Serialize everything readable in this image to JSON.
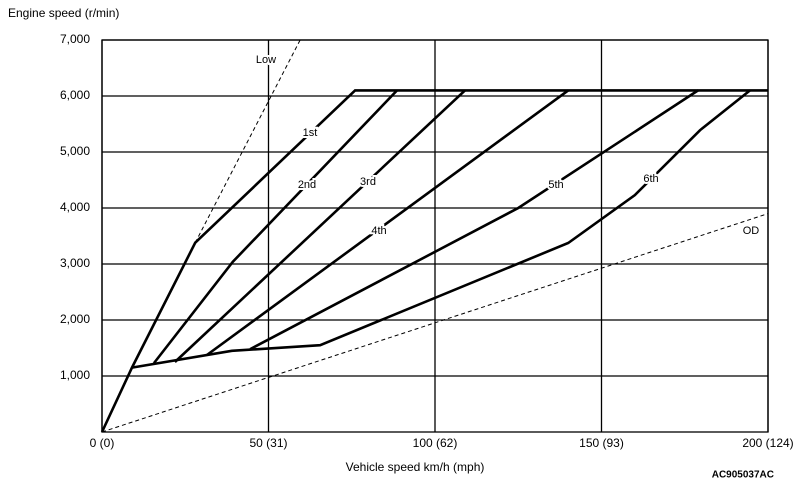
{
  "chart_data": {
    "type": "line",
    "y_axis_title": "Engine speed (r/min)",
    "x_axis_title": "Vehicle speed  km/h (mph)",
    "annotation": "AC905037AC",
    "xlim": [
      0,
      200
    ],
    "ylim": [
      0,
      7000
    ],
    "xticks": [
      {
        "value": 0,
        "label": "0 (0)"
      },
      {
        "value": 50,
        "label": "50 (31)"
      },
      {
        "value": 100,
        "label": "100 (62)"
      },
      {
        "value": 150,
        "label": "150 (93)"
      },
      {
        "value": 200,
        "label": "200 (124)"
      }
    ],
    "yticks": [
      {
        "value": 1000,
        "label": "1,000"
      },
      {
        "value": 2000,
        "label": "2,000"
      },
      {
        "value": 3000,
        "label": "3,000"
      },
      {
        "value": 4000,
        "label": "4,000"
      },
      {
        "value": 5000,
        "label": "5,000"
      },
      {
        "value": 6000,
        "label": "6,000"
      },
      {
        "value": 7000,
        "label": "7,000"
      }
    ],
    "grid": true,
    "series": [
      {
        "name": "Low",
        "color": "#000000",
        "dashed": true,
        "x": [
          28,
          59.5
        ],
        "values": [
          3380,
          7000
        ]
      },
      {
        "name": "1st",
        "color": "#000000",
        "dashed": false,
        "x": [
          0,
          9,
          28,
          76,
          200
        ],
        "values": [
          0,
          1150,
          3380,
          6100,
          6100
        ]
      },
      {
        "name": "2nd",
        "color": "#000000",
        "dashed": false,
        "x": [
          15.6,
          39.3,
          88.6
        ],
        "values": [
          1230,
          3040,
          6100
        ]
      },
      {
        "name": "3rd",
        "color": "#000000",
        "dashed": false,
        "x": [
          21.9,
          109
        ],
        "values": [
          1250,
          6100
        ]
      },
      {
        "name": "4th",
        "color": "#000000",
        "dashed": false,
        "x": [
          31.5,
          140
        ],
        "values": [
          1375,
          6100
        ]
      },
      {
        "name": "5th",
        "color": "#000000",
        "dashed": false,
        "x": [
          44.5,
          125,
          179
        ],
        "values": [
          1480,
          4000,
          6100
        ]
      },
      {
        "name": "6th",
        "color": "#000000",
        "dashed": false,
        "x": [
          9,
          39,
          65.5,
          140,
          160,
          179.6,
          194.6
        ],
        "values": [
          1150,
          1450,
          1550,
          3375,
          4230,
          5390,
          6100
        ]
      },
      {
        "name": "OD",
        "color": "#000000",
        "dashed": true,
        "x": [
          0,
          200
        ],
        "values": [
          0,
          3900
        ]
      }
    ]
  }
}
